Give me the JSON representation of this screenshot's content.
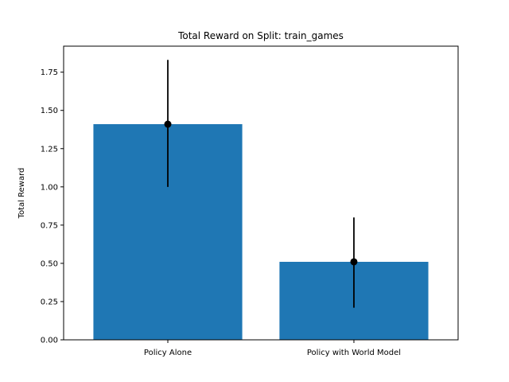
{
  "chart_data": {
    "type": "bar",
    "title": "Total Reward on Split: train_games",
    "xlabel": "",
    "ylabel": "Total Reward",
    "categories": [
      "Policy Alone",
      "Policy with World Model"
    ],
    "values": [
      1.41,
      0.51
    ],
    "error_low": [
      1.0,
      0.21
    ],
    "error_high": [
      1.83,
      0.8
    ],
    "ylim": [
      0,
      1.92
    ],
    "yticks": [
      0.0,
      0.25,
      0.5,
      0.75,
      1.0,
      1.25,
      1.5,
      1.75
    ],
    "ytick_labels": [
      "0.00",
      "0.25",
      "0.50",
      "0.75",
      "1.00",
      "1.25",
      "1.50",
      "1.75"
    ],
    "grid": false,
    "colors": {
      "bar": "#1f77b4",
      "error": "#000000",
      "marker": "#000000"
    }
  }
}
